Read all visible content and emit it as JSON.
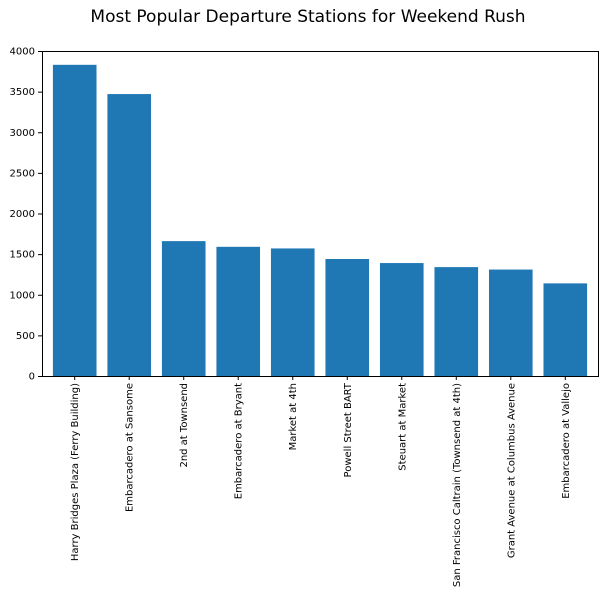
{
  "chart_data": {
    "type": "bar",
    "title": "Most Popular Departure Stations for Weekend Rush",
    "xlabel": "",
    "ylabel": "",
    "categories": [
      "Harry Bridges Plaza (Ferry Building)",
      "Embarcadero at Sansome",
      "2nd at Townsend",
      "Embarcadero at Bryant",
      "Market at 4th",
      "Powell Street BART",
      "Steuart at Market",
      "San Francisco Caltrain (Townsend at 4th)",
      "Grant Avenue at Columbus Avenue",
      "Embarcadero at Vallejo"
    ],
    "values": [
      3830,
      3470,
      1660,
      1590,
      1570,
      1440,
      1390,
      1340,
      1310,
      1140
    ],
    "ylim": [
      0,
      4000
    ],
    "yticks": [
      "0",
      "500",
      "1000",
      "1500",
      "2000",
      "2500",
      "3000",
      "3500",
      "4000"
    ],
    "bar_color": "#1f77b4",
    "grid": false,
    "legend": "none"
  }
}
